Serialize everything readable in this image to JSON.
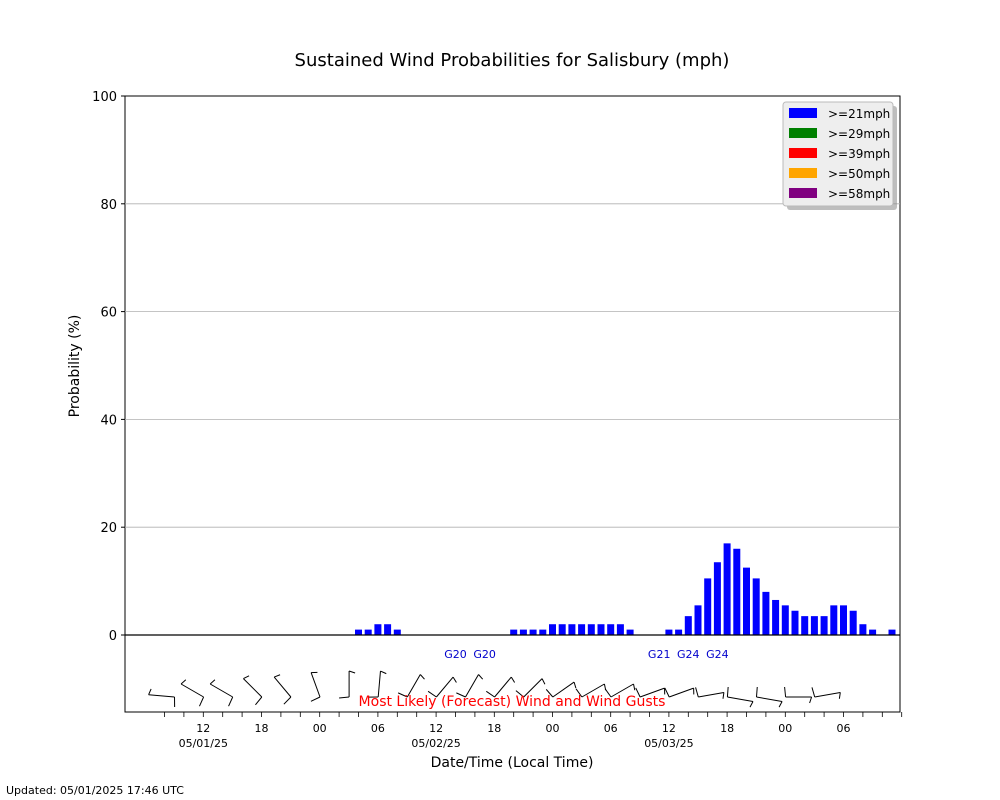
{
  "chart_data": {
    "type": "bar",
    "title": "Sustained Wind Probabilities for Salisbury (mph)",
    "xlabel": "Date/Time (Local Time)",
    "ylabel": "Probability (%)",
    "ylim": [
      0,
      100
    ],
    "yticks": [
      "0",
      "20",
      "40",
      "60",
      "80",
      "100"
    ],
    "grid": "horizontal",
    "legend_position": "top-right",
    "legend": [
      {
        "label": ">=21mph",
        "color": "#0000ff"
      },
      {
        "label": ">=29mph",
        "color": "#008000"
      },
      {
        "label": ">=39mph",
        "color": "#ff0000"
      },
      {
        "label": ">=50mph",
        "color": "#ffa500"
      },
      {
        "label": ">=58mph",
        "color": "#800080"
      }
    ],
    "x_hours": [
      20,
      21,
      22,
      23,
      24,
      25,
      26,
      27,
      28,
      29,
      36,
      37,
      38,
      39,
      40,
      41,
      42,
      43,
      44,
      45,
      46,
      47,
      48,
      52,
      53,
      54,
      55,
      56,
      57,
      58,
      59,
      60,
      61,
      62,
      63,
      64,
      65,
      66,
      67,
      68,
      69,
      70,
      71,
      72,
      73,
      75
    ],
    "values_21mph": [
      1,
      1,
      2,
      2,
      1,
      0,
      0,
      0,
      0,
      0,
      1,
      1,
      1,
      1,
      2,
      2,
      2,
      2,
      2,
      2,
      2,
      2,
      1,
      1,
      1,
      3.5,
      5.5,
      10.5,
      13.5,
      17,
      16,
      12.5,
      10.5,
      8,
      6.5,
      5.5,
      4.5,
      3.5,
      3.5,
      3.5,
      5.5,
      5.5,
      4.5,
      2,
      1,
      1
    ],
    "x_time_labels": [
      {
        "hour": 4,
        "time": "12",
        "date": "05/01/25"
      },
      {
        "hour": 10,
        "time": "18",
        "date": ""
      },
      {
        "hour": 16,
        "time": "00",
        "date": ""
      },
      {
        "hour": 22,
        "time": "06",
        "date": ""
      },
      {
        "hour": 28,
        "time": "12",
        "date": "05/02/25"
      },
      {
        "hour": 34,
        "time": "18",
        "date": ""
      },
      {
        "hour": 40,
        "time": "00",
        "date": ""
      },
      {
        "hour": 46,
        "time": "06",
        "date": ""
      },
      {
        "hour": 52,
        "time": "12",
        "date": "05/03/25"
      },
      {
        "hour": 58,
        "time": "18",
        "date": ""
      },
      {
        "hour": 64,
        "time": "00",
        "date": ""
      },
      {
        "hour": 70,
        "time": "06",
        "date": ""
      }
    ],
    "gusts": [
      {
        "hour": 30,
        "label": "G20"
      },
      {
        "hour": 33,
        "label": "G20"
      },
      {
        "hour": 51,
        "label": "G21"
      },
      {
        "hour": 54,
        "label": "G24"
      },
      {
        "hour": 57,
        "label": "G24"
      }
    ],
    "wind_barbs_direction_deg": [
      275,
      300,
      300,
      315,
      320,
      340,
      0,
      5,
      30,
      40,
      30,
      40,
      45,
      55,
      60,
      60,
      70,
      70,
      80,
      100,
      100,
      90,
      80,
      80,
      65,
      60,
      35,
      35,
      20,
      20,
      20,
      20,
      15,
      10,
      35,
      35,
      20,
      20,
      10,
      10,
      0,
      0,
      0,
      0,
      0,
      0,
      0,
      0,
      0,
      0,
      0,
      0,
      0,
      0,
      0,
      0,
      0,
      0
    ],
    "forecast_label": "Most Likely (Forecast) Wind and Wind Gusts",
    "updated": "Updated: 05/01/2025 17:46 UTC"
  }
}
